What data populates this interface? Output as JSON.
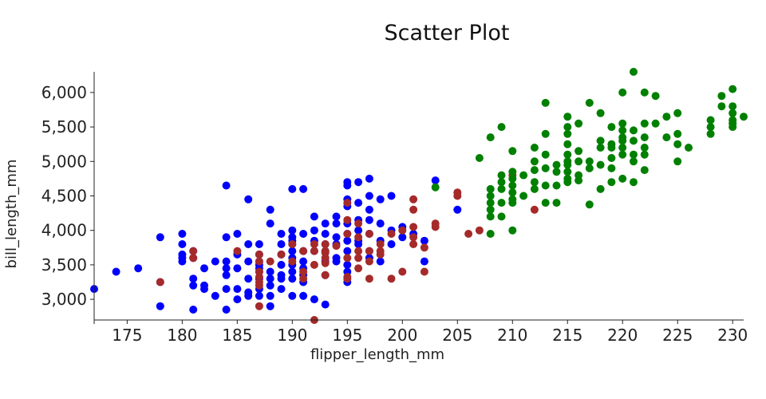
{
  "chart_data": {
    "type": "scatter",
    "title": "Scatter Plot",
    "xlabel": "flipper_length_mm",
    "ylabel": "bill_length_mm",
    "xlim": [
      172,
      231
    ],
    "ylim": [
      2700,
      6300
    ],
    "xticks": [
      "175",
      "180",
      "185",
      "190",
      "195",
      "200",
      "205",
      "210",
      "215",
      "220",
      "225",
      "230"
    ],
    "xtick_values": [
      175,
      180,
      185,
      190,
      195,
      200,
      205,
      210,
      215,
      220,
      225,
      230
    ],
    "yticks": [
      "3,000",
      "3,500",
      "4,000",
      "4,500",
      "5,000",
      "5,500",
      "6,000"
    ],
    "ytick_values": [
      3000,
      3500,
      4000,
      4500,
      5000,
      5500,
      6000
    ],
    "grid": false,
    "legend": "none",
    "series": [
      {
        "color": "#0000ff",
        "points": [
          [
            172,
            3150
          ],
          [
            174,
            3400
          ],
          [
            176,
            3450
          ],
          [
            178,
            3900
          ],
          [
            178,
            3250
          ],
          [
            178,
            2900
          ],
          [
            180,
            3950
          ],
          [
            180,
            3800
          ],
          [
            180,
            3650
          ],
          [
            180,
            3600
          ],
          [
            180,
            3550
          ],
          [
            181,
            3700
          ],
          [
            181,
            3600
          ],
          [
            181,
            3300
          ],
          [
            181,
            3200
          ],
          [
            181,
            2850
          ],
          [
            182,
            3450
          ],
          [
            182,
            3200
          ],
          [
            182,
            3150
          ],
          [
            183,
            3550
          ],
          [
            183,
            3050
          ],
          [
            184,
            4650
          ],
          [
            184,
            3900
          ],
          [
            184,
            3550
          ],
          [
            184,
            3450
          ],
          [
            184,
            3350
          ],
          [
            184,
            3150
          ],
          [
            184,
            2850
          ],
          [
            185,
            3950
          ],
          [
            185,
            3650
          ],
          [
            185,
            3450
          ],
          [
            185,
            3150
          ],
          [
            185,
            3000
          ],
          [
            186,
            4450
          ],
          [
            186,
            3800
          ],
          [
            186,
            3550
          ],
          [
            186,
            3300
          ],
          [
            186,
            3100
          ],
          [
            186,
            3050
          ],
          [
            187,
            3800
          ],
          [
            187,
            3650
          ],
          [
            187,
            3550
          ],
          [
            187,
            3500
          ],
          [
            187,
            3450
          ],
          [
            187,
            3400
          ],
          [
            187,
            3300
          ],
          [
            187,
            3150
          ],
          [
            187,
            3050
          ],
          [
            188,
            4300
          ],
          [
            188,
            4100
          ],
          [
            188,
            3400
          ],
          [
            188,
            3300
          ],
          [
            188,
            3200
          ],
          [
            188,
            3050
          ],
          [
            188,
            2900
          ],
          [
            189,
            3950
          ],
          [
            189,
            3800
          ],
          [
            189,
            3650
          ],
          [
            189,
            3500
          ],
          [
            189,
            3350
          ],
          [
            189,
            3300
          ],
          [
            189,
            3150
          ],
          [
            190,
            4600
          ],
          [
            190,
            4000
          ],
          [
            190,
            3900
          ],
          [
            190,
            3850
          ],
          [
            190,
            3800
          ],
          [
            190,
            3700
          ],
          [
            190,
            3600
          ],
          [
            190,
            3500
          ],
          [
            190,
            3400
          ],
          [
            190,
            3300
          ],
          [
            190,
            3050
          ],
          [
            191,
            4600
          ],
          [
            191,
            3950
          ],
          [
            191,
            3700
          ],
          [
            191,
            3550
          ],
          [
            191,
            3450
          ],
          [
            191,
            3350
          ],
          [
            191,
            3250
          ],
          [
            191,
            3050
          ],
          [
            192,
            4200
          ],
          [
            192,
            4000
          ],
          [
            192,
            3850
          ],
          [
            192,
            3700
          ],
          [
            192,
            3000
          ],
          [
            193,
            4100
          ],
          [
            193,
            3950
          ],
          [
            193,
            3800
          ],
          [
            193,
            3700
          ],
          [
            193,
            3550
          ],
          [
            193,
            3350
          ],
          [
            193,
            2925
          ],
          [
            194,
            4200
          ],
          [
            194,
            4100
          ],
          [
            194,
            3900
          ],
          [
            194,
            3800
          ],
          [
            194,
            3600
          ],
          [
            194,
            3550
          ],
          [
            195,
            4700
          ],
          [
            195,
            4650
          ],
          [
            195,
            4450
          ],
          [
            195,
            4350
          ],
          [
            195,
            4100
          ],
          [
            195,
            3950
          ],
          [
            195,
            3850
          ],
          [
            195,
            3700
          ],
          [
            195,
            3500
          ],
          [
            195,
            3400
          ],
          [
            195,
            3250
          ],
          [
            196,
            4700
          ],
          [
            196,
            4400
          ],
          [
            196,
            4150
          ],
          [
            196,
            4000
          ],
          [
            196,
            3850
          ],
          [
            196,
            3800
          ],
          [
            197,
            4750
          ],
          [
            197,
            4500
          ],
          [
            197,
            4300
          ],
          [
            197,
            4150
          ],
          [
            197,
            3950
          ],
          [
            197,
            3700
          ],
          [
            197,
            3600
          ],
          [
            198,
            4450
          ],
          [
            198,
            4100
          ],
          [
            198,
            3850
          ],
          [
            198,
            3550
          ],
          [
            199,
            4500
          ],
          [
            199,
            4000
          ],
          [
            199,
            3800
          ],
          [
            200,
            4050
          ],
          [
            200,
            3900
          ],
          [
            201,
            3950
          ],
          [
            202,
            3850
          ],
          [
            202,
            3550
          ],
          [
            203,
            4725
          ],
          [
            205,
            4300
          ]
        ]
      },
      {
        "color": "#a52a2a",
        "points": [
          [
            178,
            3250
          ],
          [
            181,
            3700
          ],
          [
            181,
            3600
          ],
          [
            185,
            3700
          ],
          [
            187,
            3650
          ],
          [
            187,
            3550
          ],
          [
            187,
            3400
          ],
          [
            187,
            3325
          ],
          [
            187,
            3250
          ],
          [
            187,
            3200
          ],
          [
            187,
            2900
          ],
          [
            188,
            3550
          ],
          [
            189,
            3650
          ],
          [
            190,
            3800
          ],
          [
            190,
            3550
          ],
          [
            191,
            3700
          ],
          [
            191,
            3400
          ],
          [
            191,
            3300
          ],
          [
            192,
            3800
          ],
          [
            192,
            3700
          ],
          [
            192,
            3500
          ],
          [
            192,
            2700
          ],
          [
            193,
            3800
          ],
          [
            193,
            3700
          ],
          [
            193,
            3675
          ],
          [
            193,
            3600
          ],
          [
            193,
            3525
          ],
          [
            193,
            3350
          ],
          [
            194,
            3775
          ],
          [
            195,
            4400
          ],
          [
            195,
            4150
          ],
          [
            195,
            3950
          ],
          [
            195,
            3600
          ],
          [
            195,
            3325
          ],
          [
            195,
            3300
          ],
          [
            196,
            4100
          ],
          [
            196,
            3900
          ],
          [
            196,
            3700
          ],
          [
            196,
            3600
          ],
          [
            196,
            3450
          ],
          [
            197,
            3950
          ],
          [
            197,
            3700
          ],
          [
            197,
            3550
          ],
          [
            197,
            3300
          ],
          [
            198,
            3800
          ],
          [
            198,
            3700
          ],
          [
            198,
            3650
          ],
          [
            199,
            3950
          ],
          [
            199,
            3300
          ],
          [
            200,
            4000
          ],
          [
            200,
            3400
          ],
          [
            201,
            4450
          ],
          [
            201,
            4300
          ],
          [
            201,
            4050
          ],
          [
            201,
            3900
          ],
          [
            201,
            3800
          ],
          [
            202,
            3750
          ],
          [
            202,
            3400
          ],
          [
            203,
            4100
          ],
          [
            203,
            4050
          ],
          [
            205,
            4550
          ],
          [
            205,
            4500
          ],
          [
            206,
            3950
          ],
          [
            207,
            4000
          ],
          [
            210,
            4800
          ],
          [
            212,
            4300
          ]
        ]
      },
      {
        "color": "#008000",
        "points": [
          [
            203,
            4625
          ],
          [
            207,
            5050
          ],
          [
            208,
            5350
          ],
          [
            208,
            4600
          ],
          [
            208,
            4500
          ],
          [
            208,
            4400
          ],
          [
            208,
            4300
          ],
          [
            208,
            4200
          ],
          [
            208,
            3950
          ],
          [
            209,
            5500
          ],
          [
            209,
            4800
          ],
          [
            209,
            4700
          ],
          [
            209,
            4600
          ],
          [
            209,
            4400
          ],
          [
            209,
            4200
          ],
          [
            210,
            5150
          ],
          [
            210,
            4850
          ],
          [
            210,
            4750
          ],
          [
            210,
            4650
          ],
          [
            210,
            4550
          ],
          [
            210,
            4450
          ],
          [
            210,
            4400
          ],
          [
            210,
            4000
          ],
          [
            211,
            4800
          ],
          [
            211,
            4500
          ],
          [
            212,
            5200
          ],
          [
            212,
            5000
          ],
          [
            212,
            4875
          ],
          [
            212,
            4700
          ],
          [
            212,
            4600
          ],
          [
            213,
            5850
          ],
          [
            213,
            5400
          ],
          [
            213,
            5100
          ],
          [
            213,
            4900
          ],
          [
            213,
            4650
          ],
          [
            213,
            4400
          ],
          [
            214,
            4950
          ],
          [
            214,
            4850
          ],
          [
            214,
            4650
          ],
          [
            214,
            4400
          ],
          [
            215,
            5650
          ],
          [
            215,
            5500
          ],
          [
            215,
            5400
          ],
          [
            215,
            5250
          ],
          [
            215,
            5100
          ],
          [
            215,
            5000
          ],
          [
            215,
            4950
          ],
          [
            215,
            4850
          ],
          [
            215,
            4750
          ],
          [
            215,
            4700
          ],
          [
            216,
            5550
          ],
          [
            216,
            5150
          ],
          [
            216,
            5000
          ],
          [
            216,
            4800
          ],
          [
            216,
            4725
          ],
          [
            217,
            5850
          ],
          [
            217,
            5000
          ],
          [
            217,
            4900
          ],
          [
            217,
            4375
          ],
          [
            218,
            5700
          ],
          [
            218,
            5300
          ],
          [
            218,
            5200
          ],
          [
            218,
            4950
          ],
          [
            218,
            4600
          ],
          [
            219,
            5500
          ],
          [
            219,
            5250
          ],
          [
            219,
            5200
          ],
          [
            219,
            5050
          ],
          [
            219,
            4900
          ],
          [
            219,
            4700
          ],
          [
            220,
            6000
          ],
          [
            220,
            5550
          ],
          [
            220,
            5450
          ],
          [
            220,
            5350
          ],
          [
            220,
            5300
          ],
          [
            220,
            5200
          ],
          [
            220,
            5100
          ],
          [
            220,
            4750
          ],
          [
            221,
            6300
          ],
          [
            221,
            5450
          ],
          [
            221,
            5300
          ],
          [
            221,
            5100
          ],
          [
            221,
            5000
          ],
          [
            221,
            4700
          ],
          [
            222,
            6000
          ],
          [
            222,
            5550
          ],
          [
            222,
            5350
          ],
          [
            222,
            5200
          ],
          [
            222,
            5100
          ],
          [
            222,
            4875
          ],
          [
            223,
            5950
          ],
          [
            223,
            5550
          ],
          [
            224,
            5650
          ],
          [
            224,
            5350
          ],
          [
            225,
            5700
          ],
          [
            225,
            5400
          ],
          [
            225,
            5250
          ],
          [
            225,
            5000
          ],
          [
            226,
            5200
          ],
          [
            228,
            5600
          ],
          [
            228,
            5500
          ],
          [
            228,
            5400
          ],
          [
            229,
            5950
          ],
          [
            229,
            5800
          ],
          [
            230,
            6050
          ],
          [
            230,
            5800
          ],
          [
            230,
            5700
          ],
          [
            230,
            5600
          ],
          [
            230,
            5550
          ],
          [
            230,
            5500
          ],
          [
            231,
            5650
          ]
        ]
      }
    ]
  }
}
